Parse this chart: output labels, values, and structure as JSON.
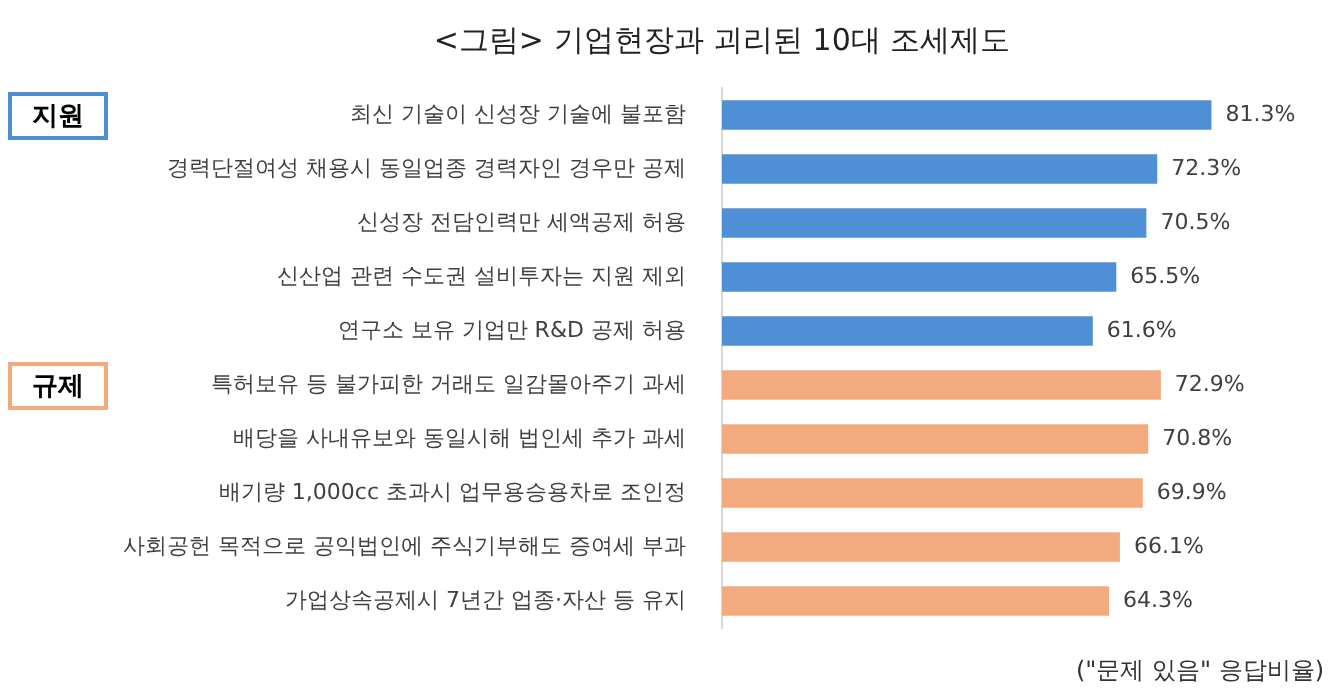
{
  "chart_data": {
    "type": "bar",
    "orientation": "horizontal",
    "title": "<그림> 기업현장과 괴리된 10대 조세제도",
    "categories": [
      "최신 기술이 신성장 기술에 불포함",
      "경력단절여성 채용시 동일업종 경력자인 경우만 공제",
      "신성장 전담인력만 세액공제 허용",
      "신산업 관련 수도권 설비투자는 지원 제외",
      "연구소 보유 기업만 R&D 공제 허용",
      "특허보유 등 불가피한 거래도 일감몰아주기 과세",
      "배당을 사내유보와 동일시해 법인세 추가 과세",
      "배기량 1,000cc 초과시 업무용승용차로 조인정",
      "사회공헌 목적으로 공익법인에 주식기부해도 증여세 부과",
      "가업상속공제시 7년간 업종·자산 등 유지"
    ],
    "values": [
      81.3,
      72.3,
      70.5,
      65.5,
      61.6,
      72.9,
      70.8,
      69.9,
      66.1,
      64.3
    ],
    "value_labels": [
      "81.3%",
      "72.3%",
      "70.5%",
      "65.5%",
      "61.6%",
      "72.9%",
      "70.8%",
      "69.9%",
      "66.1%",
      "64.3%"
    ],
    "colors": [
      "#4f8fd6",
      "#4f8fd6",
      "#4f8fd6",
      "#4f8fd6",
      "#4f8fd6",
      "#f2aa7e",
      "#f2aa7e",
      "#f2aa7e",
      "#f2aa7e",
      "#f2aa7e"
    ],
    "annotations": [
      "지원",
      "규제",
      "(\"문제 있음\" 응답비율)"
    ],
    "grid": false,
    "legend": false
  }
}
